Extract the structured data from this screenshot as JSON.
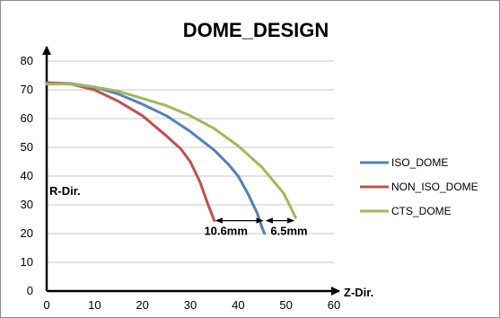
{
  "chart_data": {
    "type": "line",
    "title": "DOME_DESIGN",
    "xlabel": "Z-Dir.",
    "ylabel": "R-Dir.",
    "xlim": [
      0,
      60
    ],
    "ylim": [
      0,
      80
    ],
    "xticks": [
      0,
      10,
      20,
      30,
      40,
      50,
      60
    ],
    "yticks": [
      0,
      10,
      20,
      30,
      40,
      50,
      60,
      70,
      80
    ],
    "grid": "horizontal",
    "legend_position": "right",
    "series": [
      {
        "name": "ISO_DOME",
        "color": "#4f81bd",
        "x": [
          0,
          5,
          10,
          15,
          20,
          25,
          30,
          35,
          38,
          40,
          42,
          44,
          45,
          45.5
        ],
        "y": [
          72.5,
          72.2,
          71,
          68.5,
          65,
          61,
          55.5,
          49,
          44,
          40,
          34,
          27,
          22,
          20
        ]
      },
      {
        "name": "NON_ISO_DOME",
        "color": "#c0504d",
        "x": [
          0,
          5,
          10,
          15,
          20,
          25,
          28,
          30,
          32,
          33.5,
          35
        ],
        "y": [
          72.5,
          72,
          70,
          66,
          61,
          54,
          49.5,
          45,
          38,
          31,
          24.5
        ]
      },
      {
        "name": "CTS_DOME",
        "color": "#9bbb59",
        "x": [
          0,
          5,
          10,
          15,
          20,
          25,
          30,
          35,
          40,
          45,
          49.5,
          51,
          52
        ],
        "y": [
          72,
          72,
          71,
          69.5,
          67,
          64.5,
          61,
          56.5,
          50.5,
          43,
          34,
          29,
          25.5
        ]
      }
    ],
    "annotations": [
      {
        "text": "10.6mm",
        "from_x": 35,
        "to_x": 45.5,
        "y": 24.5
      },
      {
        "text": "6.5mm",
        "from_x": 45.5,
        "to_x": 52,
        "y": 24.5
      }
    ]
  }
}
